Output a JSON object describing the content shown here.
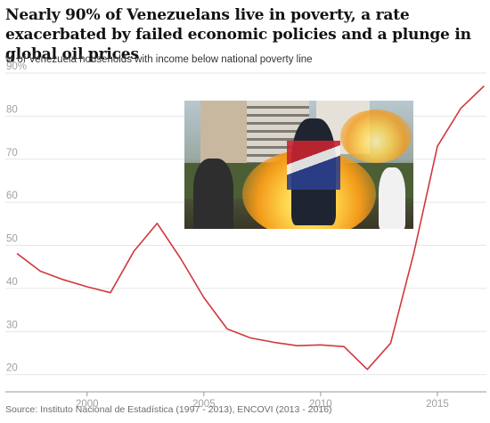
{
  "header": {
    "title": "Nearly 90% of Venezuelans live in poverty, a rate exacerbated by failed economic policies and a plunge in global oil prices",
    "subtitle": "% of Venezuela households with income below national poverty line"
  },
  "footer": {
    "source": "Source: Instituto Nacional de Estadística (1997 - 2013), ENCOVI (2013 - 2016)"
  },
  "photo": {
    "description_icon": "protest-photo"
  },
  "colors": {
    "line": "#d0383e",
    "grid": "#e6e6e6",
    "axis": "#999999",
    "tick_text": "#a0a0a0"
  },
  "chart_data": {
    "type": "line",
    "title": "Nearly 90% of Venezuelans live in poverty, a rate exacerbated by failed economic policies and a plunge in global oil prices",
    "subtitle": "% of Venezuela households with income below national poverty line",
    "xlabel": "",
    "ylabel": "",
    "xlim": [
      1996.5,
      2017.1
    ],
    "ylim": [
      16,
      90
    ],
    "x_ticks": [
      2000,
      2005,
      2010,
      2015
    ],
    "y_ticks": [
      20,
      30,
      40,
      50,
      60,
      70,
      80,
      90
    ],
    "y_tick_labels": [
      "20",
      "30",
      "40",
      "50",
      "60",
      "70",
      "80",
      "90%"
    ],
    "grid": true,
    "series": [
      {
        "color": "#d0383e",
        "x": [
          1997,
          1998,
          1999,
          2000,
          2001,
          2002,
          2003,
          2004,
          2005,
          2006,
          2007,
          2008,
          2009,
          2010,
          2011,
          2012,
          2013,
          2014,
          2015,
          2016,
          2017
        ],
        "y": [
          48.1,
          44.0,
          42.0,
          40.4,
          39.0,
          48.6,
          55.1,
          47.0,
          37.9,
          30.6,
          28.5,
          27.5,
          26.7,
          26.9,
          26.5,
          21.2,
          27.3,
          48.4,
          73.0,
          81.8,
          87.0
        ]
      }
    ]
  }
}
